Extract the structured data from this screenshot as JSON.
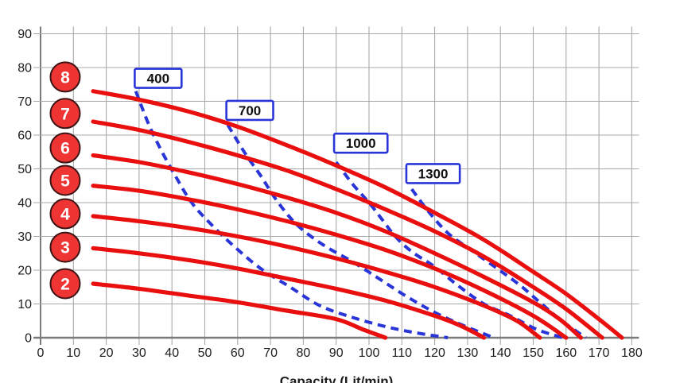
{
  "chart_data": {
    "type": "line",
    "title": "",
    "xlabel": "Capacity (Lit/min)",
    "ylabel": "",
    "xlim": [
      0,
      180
    ],
    "ylim": [
      0,
      90
    ],
    "x_ticks": [
      0,
      10,
      20,
      30,
      40,
      50,
      60,
      70,
      80,
      90,
      100,
      110,
      120,
      130,
      140,
      150,
      160,
      170,
      180
    ],
    "y_ticks": [
      0,
      10,
      20,
      30,
      40,
      50,
      60,
      70,
      80,
      90
    ],
    "grid": true,
    "legend_position": "none",
    "colors": {
      "pump_curve": "#e90f0f",
      "speed_curve": "#2a35d8",
      "grid": "#a8a8a8",
      "axis": "#7a7a7a",
      "badge_fill": "#ef3434",
      "badge_stroke": "#3d1414",
      "badge_text": "#ffffff",
      "label_box_fill": "#ffffff",
      "label_box_border": "#2a35d8",
      "tick_text": "#1d1d1d"
    },
    "series": [
      {
        "name": "stage-8",
        "stage": "8",
        "points": [
          [
            16,
            73
          ],
          [
            30,
            70.5
          ],
          [
            45,
            67
          ],
          [
            60,
            62.5
          ],
          [
            75,
            57
          ],
          [
            90,
            51
          ],
          [
            105,
            44.5
          ],
          [
            120,
            37
          ],
          [
            135,
            29
          ],
          [
            150,
            19.5
          ],
          [
            160,
            13
          ],
          [
            170,
            5.5
          ],
          [
            177,
            0
          ]
        ]
      },
      {
        "name": "stage-7",
        "stage": "7",
        "points": [
          [
            16,
            64
          ],
          [
            30,
            61.5
          ],
          [
            45,
            58
          ],
          [
            60,
            54
          ],
          [
            75,
            49.5
          ],
          [
            90,
            44
          ],
          [
            105,
            38
          ],
          [
            120,
            31.5
          ],
          [
            135,
            24
          ],
          [
            150,
            15
          ],
          [
            160,
            8.5
          ],
          [
            171,
            0
          ]
        ]
      },
      {
        "name": "stage-6",
        "stage": "6",
        "points": [
          [
            16,
            54
          ],
          [
            30,
            52
          ],
          [
            45,
            49
          ],
          [
            60,
            45.5
          ],
          [
            75,
            41.5
          ],
          [
            90,
            37
          ],
          [
            105,
            31.5
          ],
          [
            120,
            25
          ],
          [
            135,
            18
          ],
          [
            150,
            10.5
          ],
          [
            158,
            5.5
          ],
          [
            164.5,
            0
          ]
        ]
      },
      {
        "name": "stage-5",
        "stage": "5",
        "points": [
          [
            16,
            45
          ],
          [
            30,
            43.5
          ],
          [
            45,
            41
          ],
          [
            60,
            38
          ],
          [
            75,
            34.5
          ],
          [
            90,
            30.5
          ],
          [
            105,
            26
          ],
          [
            120,
            20.5
          ],
          [
            135,
            14
          ],
          [
            150,
            6.5
          ],
          [
            160,
            0
          ]
        ]
      },
      {
        "name": "stage-4",
        "stage": "4",
        "points": [
          [
            16,
            36
          ],
          [
            30,
            34.5
          ],
          [
            45,
            32.5
          ],
          [
            60,
            30
          ],
          [
            75,
            27
          ],
          [
            90,
            23.5
          ],
          [
            105,
            19.5
          ],
          [
            120,
            15
          ],
          [
            135,
            9.5
          ],
          [
            145,
            5
          ],
          [
            152,
            0
          ]
        ]
      },
      {
        "name": "stage-3",
        "stage": "3",
        "points": [
          [
            16,
            26.5
          ],
          [
            30,
            25
          ],
          [
            45,
            23
          ],
          [
            60,
            20.5
          ],
          [
            75,
            17.5
          ],
          [
            90,
            14.5
          ],
          [
            105,
            11
          ],
          [
            120,
            6.5
          ],
          [
            128,
            3.5
          ],
          [
            135,
            0
          ]
        ]
      },
      {
        "name": "stage-2",
        "stage": "2",
        "points": [
          [
            16,
            16
          ],
          [
            30,
            14.5
          ],
          [
            45,
            12.5
          ],
          [
            60,
            10.5
          ],
          [
            75,
            8
          ],
          [
            90,
            5.5
          ],
          [
            98,
            2.5
          ],
          [
            105,
            0
          ]
        ]
      }
    ],
    "stage_badges": [
      {
        "label": "8",
        "x": 7.5,
        "y": 77.2
      },
      {
        "label": "7",
        "x": 7.5,
        "y": 66.4
      },
      {
        "label": "6",
        "x": 7.5,
        "y": 56.2
      },
      {
        "label": "5",
        "x": 7.5,
        "y": 46.6
      },
      {
        "label": "4",
        "x": 7.5,
        "y": 36.7
      },
      {
        "label": "3",
        "x": 7.5,
        "y": 26.8
      },
      {
        "label": "2",
        "x": 7.5,
        "y": 16.0
      }
    ],
    "speed_curves": [
      {
        "name": "400",
        "label": "400",
        "label_pos": {
          "x": 35.8,
          "y": 76.8
        },
        "points": [
          [
            29,
            73
          ],
          [
            33,
            63
          ],
          [
            37,
            55
          ],
          [
            41,
            48
          ],
          [
            46,
            40
          ],
          [
            52,
            33.5
          ],
          [
            59,
            27
          ],
          [
            67,
            20.5
          ],
          [
            76,
            15
          ],
          [
            85,
            9.5
          ],
          [
            95,
            6
          ],
          [
            105,
            3.3
          ],
          [
            114,
            1.5
          ],
          [
            124,
            0
          ]
        ]
      },
      {
        "name": "700",
        "label": "700",
        "label_pos": {
          "x": 63.7,
          "y": 67.3
        },
        "points": [
          [
            57,
            63
          ],
          [
            62,
            55
          ],
          [
            67,
            48
          ],
          [
            72,
            40.5
          ],
          [
            78,
            33.5
          ],
          [
            86,
            27.5
          ],
          [
            95,
            22.5
          ],
          [
            103,
            17.5
          ],
          [
            111,
            12.5
          ],
          [
            120,
            7.5
          ],
          [
            129,
            3.5
          ],
          [
            138,
            0
          ]
        ]
      },
      {
        "name": "1000",
        "label": "1000",
        "label_pos": {
          "x": 97.5,
          "y": 57.6
        },
        "points": [
          [
            90,
            52
          ],
          [
            95,
            45.5
          ],
          [
            100,
            40
          ],
          [
            104,
            35
          ],
          [
            108,
            30
          ],
          [
            113,
            25.5
          ],
          [
            120,
            21
          ],
          [
            127,
            15.5
          ],
          [
            135,
            10
          ],
          [
            143,
            6.5
          ],
          [
            151,
            2.5
          ],
          [
            159,
            0
          ]
        ]
      },
      {
        "name": "1300",
        "label": "1300",
        "label_pos": {
          "x": 119.5,
          "y": 48.6
        },
        "points": [
          [
            113,
            44
          ],
          [
            118,
            37.5
          ],
          [
            124,
            31
          ],
          [
            131,
            26
          ],
          [
            139,
            20.5
          ],
          [
            146,
            15.5
          ],
          [
            152,
            10.5
          ],
          [
            158,
            5.5
          ],
          [
            163,
            2
          ],
          [
            166,
            0
          ]
        ]
      }
    ]
  }
}
